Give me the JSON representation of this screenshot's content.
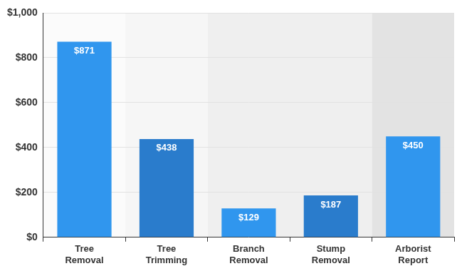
{
  "chart_data": {
    "type": "bar",
    "categories": [
      "Tree Removal",
      "Tree Trimming",
      "Branch Removal",
      "Stump Removal",
      "Arborist Report"
    ],
    "values": [
      871,
      438,
      129,
      187,
      450
    ],
    "value_labels": [
      "$871",
      "$438",
      "$129",
      "$187",
      "$450"
    ],
    "colors": [
      "#3096ee",
      "#2a7ccc",
      "#3096ee",
      "#2a7ccc",
      "#3096ee"
    ],
    "data_labels": true,
    "ylim": [
      0,
      1000
    ],
    "yticks": [
      {
        "value": 0,
        "label": "$0"
      },
      {
        "value": 200,
        "label": "$200"
      },
      {
        "value": 400,
        "label": "$400"
      },
      {
        "value": 600,
        "label": "$600"
      },
      {
        "value": 800,
        "label": "$800"
      },
      {
        "value": 1000,
        "label": "$1,000"
      }
    ],
    "grid": true
  }
}
